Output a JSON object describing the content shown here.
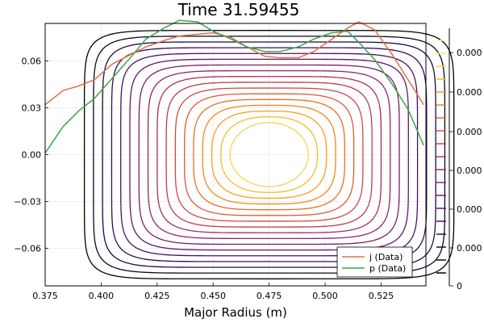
{
  "chart_data": {
    "type": "line",
    "title": "Time 31.59455",
    "xlabel": "Major Radius (m)",
    "ylabel": "",
    "xlim": [
      0.375,
      0.545
    ],
    "ylim": [
      -0.084,
      0.084
    ],
    "x_ticks": [
      "0.375",
      "0.400",
      "0.425",
      "0.450",
      "0.475",
      "0.500",
      "0.525"
    ],
    "x_tick_values": [
      0.375,
      0.4,
      0.425,
      0.45,
      0.475,
      0.5,
      0.525
    ],
    "y_ticks": [
      "0.06",
      "0.03",
      "0.00",
      "−0.03",
      "−0.06"
    ],
    "y_tick_values": [
      0.06,
      0.03,
      0.0,
      -0.03,
      -0.06
    ],
    "grid": true,
    "legend_position": "bottom-right",
    "contours": {
      "center": [
        0.475,
        0.0
      ],
      "count": 17,
      "colormap": "inferno",
      "outer_half_width": 0.0825,
      "outer_half_height": 0.0795,
      "inner_half_width": 0.0175,
      "inner_half_height": 0.0205
    },
    "series": [
      {
        "name": "j (Data)",
        "color": "#e26f46",
        "x": [
          0.375,
          0.383,
          0.39,
          0.397,
          0.405,
          0.413,
          0.42,
          0.428,
          0.435,
          0.443,
          0.45,
          0.458,
          0.465,
          0.473,
          0.48,
          0.488,
          0.495,
          0.503,
          0.51,
          0.515,
          0.522,
          0.53,
          0.537,
          0.544
        ],
        "y": [
          0.032,
          0.041,
          0.044,
          0.048,
          0.058,
          0.064,
          0.069,
          0.073,
          0.076,
          0.077,
          0.078,
          0.075,
          0.069,
          0.063,
          0.062,
          0.062,
          0.066,
          0.074,
          0.081,
          0.085,
          0.08,
          0.064,
          0.048,
          0.032
        ]
      },
      {
        "name": "p (Data)",
        "color": "#3da44d",
        "x": [
          0.375,
          0.383,
          0.39,
          0.397,
          0.405,
          0.413,
          0.42,
          0.428,
          0.435,
          0.443,
          0.45,
          0.458,
          0.465,
          0.473,
          0.48,
          0.488,
          0.495,
          0.503,
          0.51,
          0.515,
          0.522,
          0.53,
          0.537,
          0.544
        ],
        "y": [
          0.001,
          0.018,
          0.028,
          0.036,
          0.049,
          0.062,
          0.074,
          0.081,
          0.086,
          0.085,
          0.079,
          0.074,
          0.069,
          0.066,
          0.066,
          0.069,
          0.074,
          0.078,
          0.079,
          0.072,
          0.061,
          0.045,
          0.029,
          0.006
        ]
      }
    ],
    "colorbar": {
      "tick_labels": [
        "0.000",
        "0.000",
        "0.000",
        "0.000",
        "0.000",
        "0.000",
        "0"
      ]
    }
  }
}
